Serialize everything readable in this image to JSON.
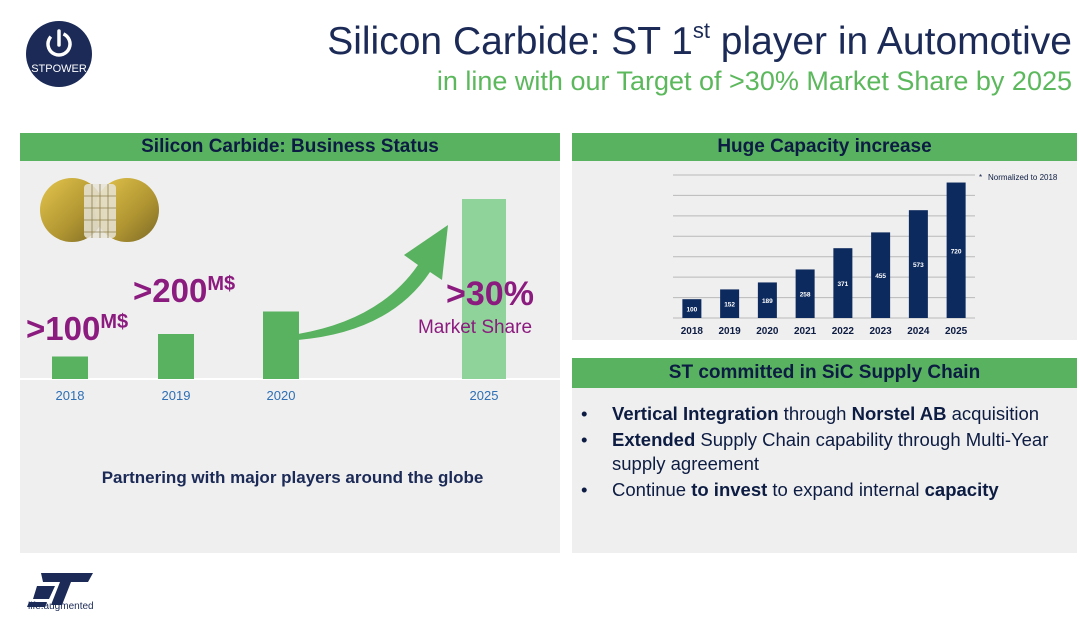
{
  "header": {
    "logo_text": "STPOWER",
    "title_prefix": "Silicon Carbide: ST 1",
    "title_sup": "st",
    "title_suffix": " player in Automotive",
    "subtitle": "in line with our Target of >30% Market Share by 2025"
  },
  "business_status": {
    "heading": "Silicon Carbide: Business Status",
    "partner_text": "Partnering with major players around the globe"
  },
  "capacity": {
    "heading": "Huge Capacity increase",
    "note": "Normalized to 2018"
  },
  "supply_chain": {
    "heading": "ST committed in SiC Supply Chain",
    "bullets": [
      [
        {
          "t": "Vertical Integration",
          "b": true
        },
        {
          "t": " through ",
          "b": false
        },
        {
          "t": "Norstel AB",
          "b": true
        },
        {
          "t": " acquisition",
          "b": false
        }
      ],
      [
        {
          "t": "Extended",
          "b": true
        },
        {
          "t": " Supply Chain capability through Multi-Year supply agreement",
          "b": false
        }
      ],
      [
        {
          "t": "Continue ",
          "b": false
        },
        {
          "t": "to invest",
          "b": true
        },
        {
          "t": " to expand internal ",
          "b": false
        },
        {
          "t": "capacity",
          "b": true
        }
      ]
    ]
  },
  "footer": {
    "tagline": "life.augmented"
  },
  "colors": {
    "navy": "#0d2a5e",
    "green": "#58b25f",
    "light_green": "#8fd39a",
    "purple": "#8b1b7e",
    "axis_blue": "#2e6fb5"
  },
  "chart_data": [
    {
      "type": "bar",
      "categories": [
        "2018",
        "2019",
        "2020",
        "2025"
      ],
      "values": [
        1,
        2,
        3,
        8
      ],
      "labels": [
        {
          "category": "2018",
          "prefix": ">100",
          "sup": "M$"
        },
        {
          "category": "2019",
          "prefix": ">200",
          "sup": "M$"
        },
        {
          "category": "2025",
          "prefix": ">30%",
          "sub": "Market Share"
        }
      ],
      "ylim": [
        0,
        8
      ]
    },
    {
      "type": "bar",
      "categories": [
        "2018",
        "2019",
        "2020",
        "2021",
        "2022",
        "2023",
        "2024",
        "2025"
      ],
      "values": [
        100,
        152,
        189,
        258,
        371,
        455,
        573,
        720
      ],
      "ylim": [
        0,
        760
      ],
      "grid": true,
      "annotation": "Normalized to 2018"
    }
  ]
}
